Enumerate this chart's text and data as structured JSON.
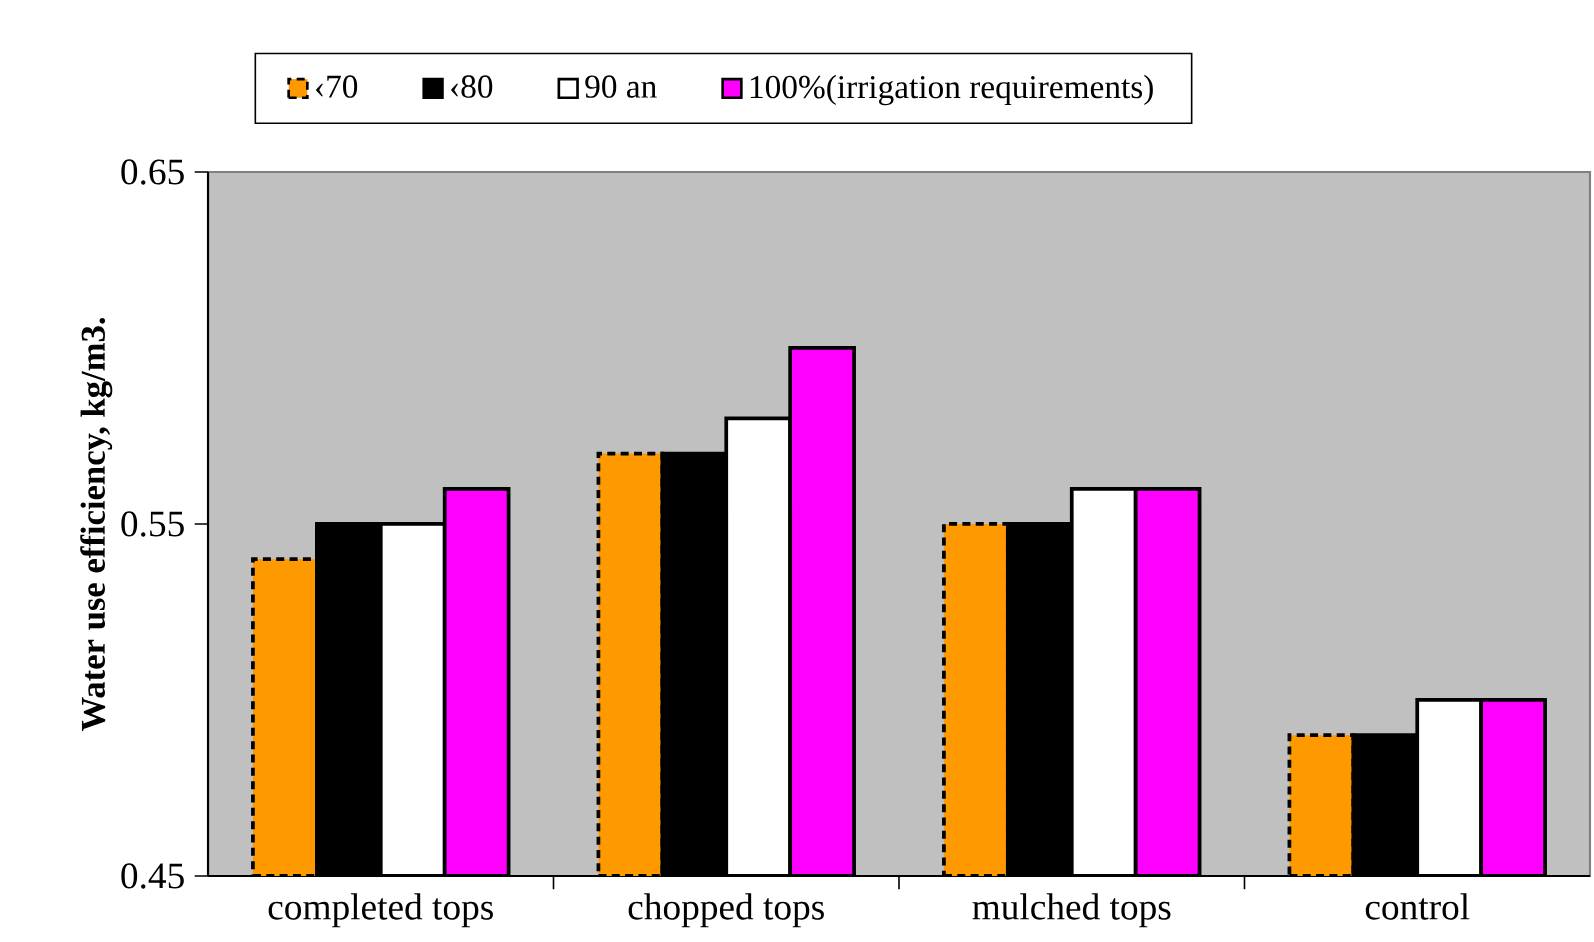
{
  "chart_data": {
    "type": "bar",
    "ylabel": "Water use efficiency, kg/m3.",
    "categories": [
      "completed tops",
      "chopped tops",
      "mulched tops",
      "control"
    ],
    "series": [
      {
        "name": "‹70",
        "color": "#ff9900",
        "line_style": "dashed",
        "values": [
          0.54,
          0.57,
          0.55,
          0.49
        ]
      },
      {
        "name": "‹80",
        "color": "#000000",
        "values": [
          0.55,
          0.57,
          0.55,
          0.49
        ]
      },
      {
        "name": "90 an",
        "color": "#ffffff",
        "values": [
          0.55,
          0.58,
          0.56,
          0.5
        ]
      },
      {
        "name": "100%(irrigation requirements)",
        "color": "#ff00ff",
        "values": [
          0.56,
          0.6,
          0.56,
          0.5
        ]
      }
    ],
    "ylim": [
      0.45,
      0.65
    ],
    "yticks": [
      0.45,
      0.55,
      0.65
    ],
    "legend": "top"
  }
}
